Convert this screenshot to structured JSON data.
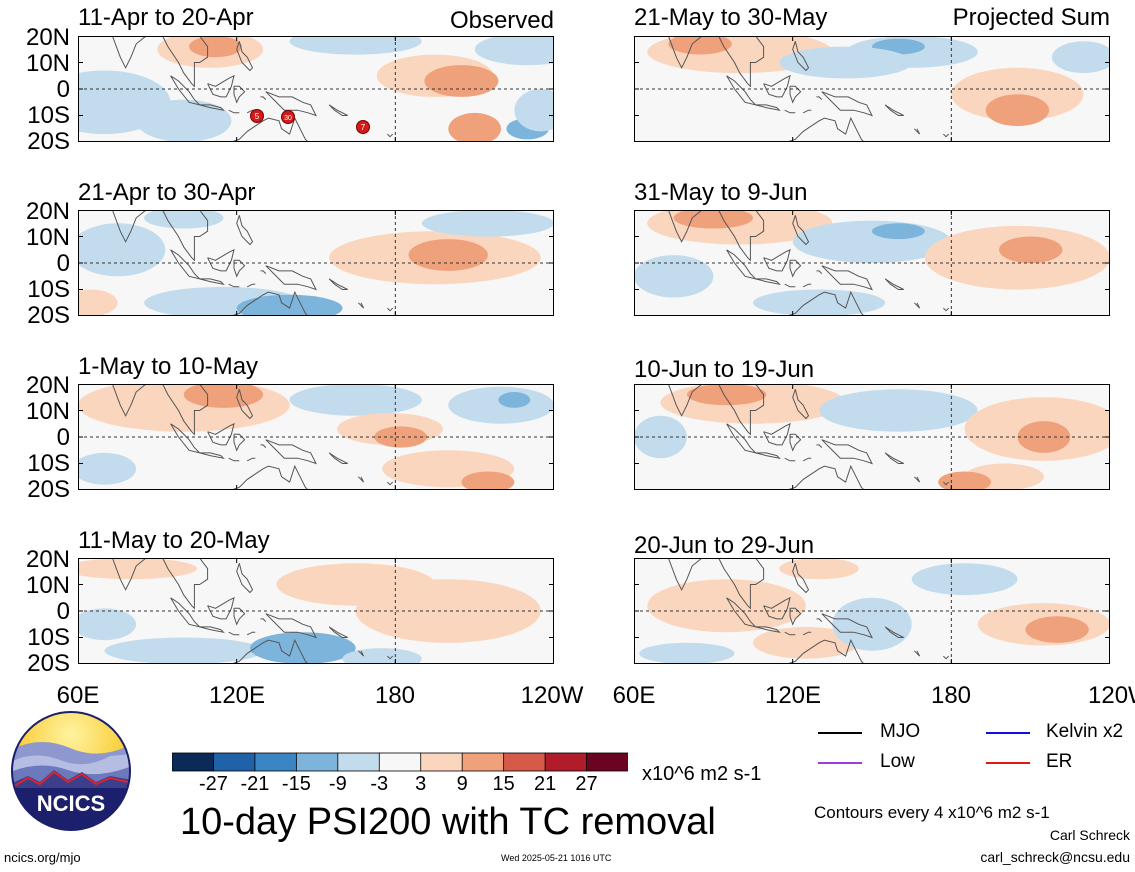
{
  "panels_left": [
    {
      "period": "11-Apr to 20-Apr",
      "label": "Observed"
    },
    {
      "period": "21-Apr to 30-Apr"
    },
    {
      "period": "1-May to 10-May"
    },
    {
      "period": "11-May to 20-May"
    }
  ],
  "panels_right": [
    {
      "period": "21-May to 30-May",
      "label": "Projected Sum"
    },
    {
      "period": "31-May to 9-Jun"
    },
    {
      "period": "10-Jun to 19-Jun"
    },
    {
      "period": "20-Jun to 29-Jun"
    }
  ],
  "lat_ticks": [
    "20N",
    "10N",
    "0",
    "10S",
    "20S"
  ],
  "lon_ticks": [
    "60E",
    "120E",
    "180",
    "120W"
  ],
  "tc_markers": [
    "5",
    "30",
    "7"
  ],
  "colorbar": {
    "ticks": [
      "-27",
      "-21",
      "-15",
      "-9",
      "-3",
      "3",
      "9",
      "15",
      "21",
      "27"
    ],
    "colors": [
      "#0b2a57",
      "#1f62a8",
      "#3a86c4",
      "#7cb4dc",
      "#c3dced",
      "#f7f7f7",
      "#fbd6bf",
      "#efa17c",
      "#d65a48",
      "#b01c2a",
      "#6b0421"
    ],
    "units": "x10^6 m2 s-1"
  },
  "title": "10-day PSI200 with TC removal",
  "legend": [
    {
      "label": "MJO",
      "color": "#000000"
    },
    {
      "label": "Kelvin x2",
      "color": "#1010e0"
    },
    {
      "label": "Low",
      "color": "#9c3ce0"
    },
    {
      "label": "ER",
      "color": "#e01818"
    }
  ],
  "contours_note": "Contours every 4 x10^6 m2 s-1",
  "logo_text": "NCICS",
  "footer": {
    "url": "ncics.org/mjo",
    "timestamp": "Wed 2025-05-21 1016 UTC",
    "author": "Carl Schreck",
    "email": "carl_schreck@ncsu.edu"
  }
}
